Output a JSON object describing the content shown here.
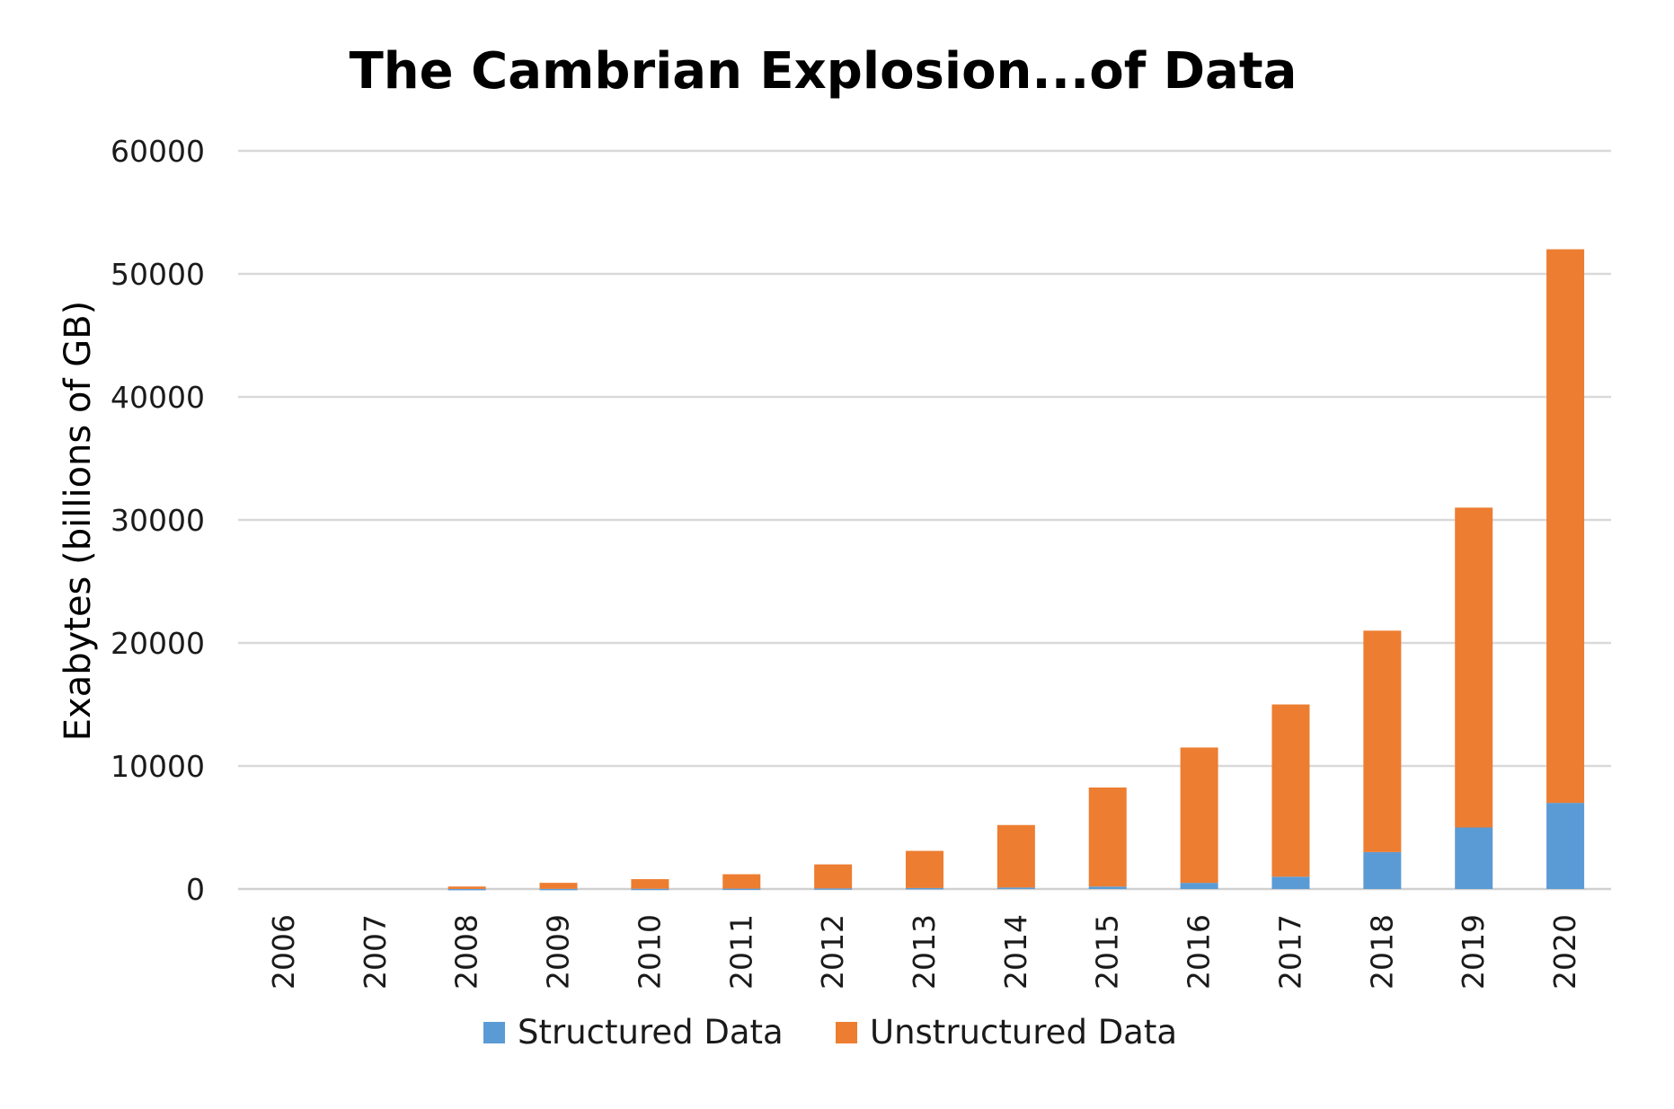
{
  "chart_data": {
    "type": "bar",
    "stacked": true,
    "title": "The Cambrian Explosion...of Data",
    "xlabel": "",
    "ylabel": "Exabytes (billions of GB)",
    "ylim": [
      0,
      60000
    ],
    "yticks": [
      "0",
      "10000",
      "20000",
      "30000",
      "40000",
      "50000",
      "60000"
    ],
    "grid": true,
    "legend_position": "bottom",
    "categories": [
      "2006",
      "2007",
      "2008",
      "2009",
      "2010",
      "2011",
      "2012",
      "2013",
      "2014",
      "2015",
      "2016",
      "2017",
      "2018",
      "2019",
      "2020"
    ],
    "series": [
      {
        "name": "Structured Data",
        "color": "#5b9bd5",
        "values": [
          0,
          0,
          5,
          10,
          20,
          30,
          50,
          80,
          120,
          200,
          500,
          1000,
          3000,
          5000,
          7000
        ]
      },
      {
        "name": "Unstructured Data",
        "color": "#ed7d31",
        "values": [
          0,
          0,
          195,
          490,
          780,
          1170,
          1950,
          3020,
          5080,
          8050,
          11000,
          14000,
          18000,
          26000,
          45000
        ]
      }
    ]
  }
}
